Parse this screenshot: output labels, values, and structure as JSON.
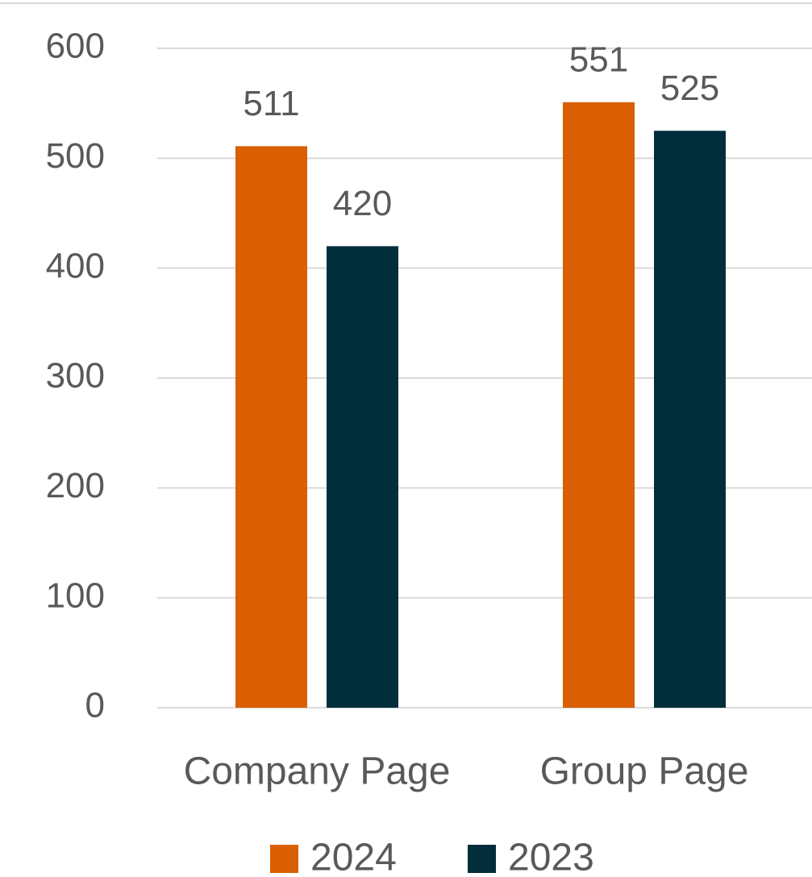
{
  "chart_data": {
    "type": "bar",
    "categories": [
      "Company Page",
      "Group Page"
    ],
    "series": [
      {
        "name": "2024",
        "color": "#d95f02",
        "values": [
          511,
          551
        ]
      },
      {
        "name": "2023",
        "color": "#022d3a",
        "values": [
          420,
          525
        ]
      }
    ],
    "ylim": [
      0,
      600
    ],
    "yticks": [
      0,
      100,
      200,
      300,
      400,
      500,
      600
    ],
    "grid": true,
    "legend": "bottom",
    "data_labels": true
  }
}
